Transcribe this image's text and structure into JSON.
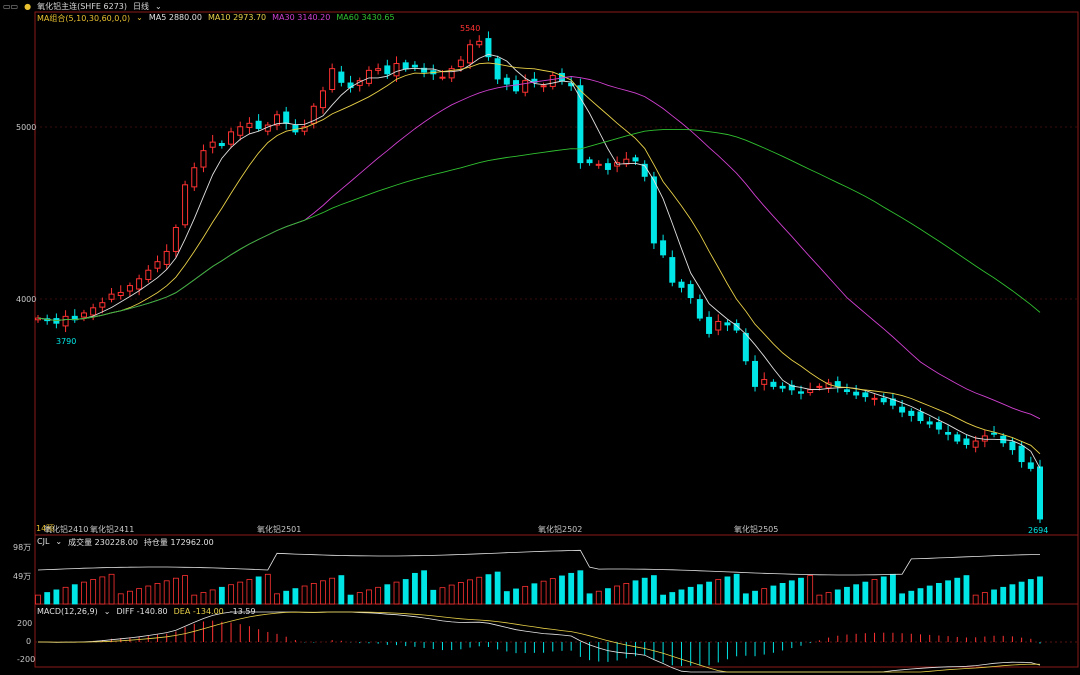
{
  "toolbar": {
    "symbol": "氧化铝主连(SHFE 6273)",
    "period": "日线",
    "dropdown_icon": "chevron-down-icon"
  },
  "panels": {
    "price": {
      "legend_label": "MA组合(5,10,30,60,0,0)",
      "ma": [
        {
          "label": "MA5",
          "value": "2880.00",
          "color": "#e0e0e0"
        },
        {
          "label": "MA10",
          "value": "2973.70",
          "color": "#e8d048"
        },
        {
          "label": "MA30",
          "value": "3140.20",
          "color": "#d040d0"
        },
        {
          "label": "MA60",
          "value": "3430.65",
          "color": "#30c030"
        }
      ],
      "y_ticks": [
        "5000",
        "4000"
      ],
      "high_label": "5540",
      "low_label": "3790",
      "last_label": "2694",
      "contract_labels": [
        "氧化铝2410",
        "氧化铝2411",
        "氧化铝2501",
        "氧化铝2502",
        "氧化铝2505"
      ],
      "left_tag": "14预"
    },
    "volume": {
      "legend_label": "CJL",
      "vol_label": "成交量",
      "vol_value": "230228.00",
      "oi_label": "持仓量",
      "oi_value": "172962.00",
      "y_ticks": [
        "98万",
        "49万"
      ]
    },
    "macd": {
      "legend_label": "MACD(12,26,9)",
      "diff_label": "DIFF",
      "diff_value": "-140.80",
      "dea_label": "DEA",
      "dea_value": "-134.00",
      "macd_value": "-13.59",
      "y_ticks": [
        "200",
        "0",
        "-200"
      ]
    }
  },
  "colors": {
    "up": "#ff3232",
    "down": "#00e6e6",
    "grid": "#8b1a1a",
    "oi_line": "#e6e6e6",
    "diff_line": "#e6e6e6",
    "dea_line": "#e8d048"
  },
  "chart_data": {
    "type": "candlestick",
    "price_ylim": [
      2600,
      5650
    ],
    "ohlc_step": "approximate daily candles read from chart",
    "close_path": [
      3870,
      3855,
      3840,
      3880,
      3860,
      3900,
      3930,
      3960,
      4010,
      4020,
      4060,
      4100,
      4150,
      4200,
      4260,
      4400,
      4650,
      4750,
      4850,
      4900,
      4880,
      4960,
      4990,
      5010,
      4980,
      5000,
      5060,
      5010,
      4960,
      4990,
      5110,
      5200,
      5330,
      5250,
      5220,
      5260,
      5320,
      5330,
      5300,
      5360,
      5330,
      5340,
      5310,
      5300,
      5280,
      5330,
      5380,
      5470,
      5490,
      5400,
      5270,
      5240,
      5200,
      5260,
      5250,
      5230,
      5290,
      5260,
      5230,
      4780,
      4780,
      4770,
      4740,
      4780,
      4800,
      4790,
      4700,
      4310,
      4240,
      4080,
      4050,
      3990,
      3870,
      3780,
      3850,
      3830,
      3800,
      3620,
      3470,
      3510,
      3470,
      3460,
      3450,
      3430,
      3450,
      3470,
      3490,
      3470,
      3440,
      3420,
      3410,
      3400,
      3380,
      3360,
      3320,
      3300,
      3270,
      3250,
      3220,
      3190,
      3150,
      3130,
      3150,
      3180,
      3190,
      3140,
      3100,
      3030,
      2990,
      2694
    ],
    "ma5_last": 2880.0,
    "ma10_last": 2973.7,
    "ma30_last": 3140.2,
    "ma60_last": 3430.65,
    "volume_scale_max": 980000,
    "volume_last": 230228,
    "open_interest_last": 172962,
    "macd": {
      "diff_last": -140.8,
      "dea_last": -134.0,
      "macd_last": -13.59,
      "ylim": [
        -260,
        260
      ]
    }
  }
}
